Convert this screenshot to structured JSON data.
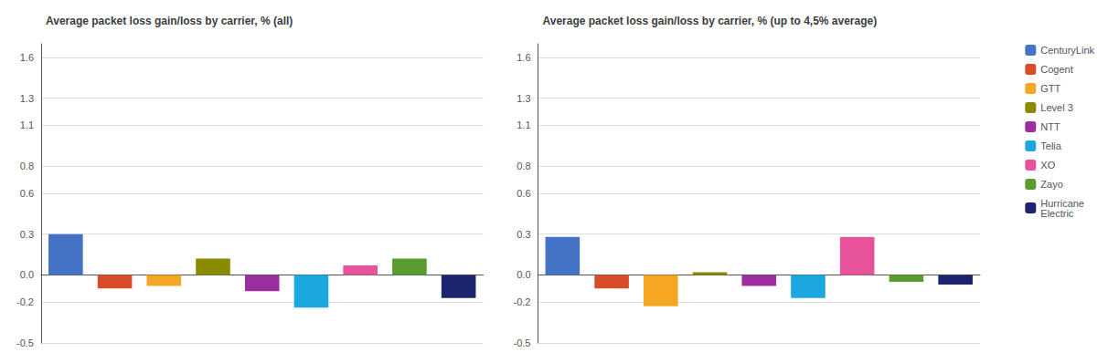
{
  "chart_data": [
    {
      "type": "bar",
      "title": "Average packet loss gain/loss by carrier, % (all)",
      "categories": [
        "CenturyLink",
        "Cogent",
        "GTT",
        "Level 3",
        "NTT",
        "Telia",
        "XO",
        "Zayo",
        "Hurricane\nElectric"
      ],
      "values": [
        0.3,
        -0.1,
        -0.08,
        0.12,
        -0.12,
        -0.24,
        0.07,
        0.12,
        -0.17
      ],
      "colors": [
        "#4472C4",
        "#D94C2A",
        "#F5A623",
        "#8B8B00",
        "#9B2FA0",
        "#1BA8E0",
        "#E8529A",
        "#5B9C2E",
        "#1C2470"
      ],
      "ylim": [
        -0.5,
        1.7
      ],
      "yticks": [
        -0.5,
        -0.2,
        {
          "value": 0,
          "label": "0.0"
        },
        0.3,
        0.6,
        0.8,
        1.1,
        1.3,
        1.6
      ],
      "grid": true,
      "tick_labels": "y"
    },
    {
      "type": "bar",
      "title": "Average packet loss gain/loss by carrier, % (up to 4,5% average)",
      "categories": [
        "CenturyLink",
        "Cogent",
        "GTT",
        "Level 3",
        "NTT",
        "Telia",
        "XO",
        "Zayo",
        "Hurricane\nElectric"
      ],
      "values": [
        0.28,
        -0.1,
        -0.23,
        0.02,
        -0.08,
        -0.17,
        0.28,
        -0.05,
        -0.07
      ],
      "colors": [
        "#4472C4",
        "#D94C2A",
        "#F5A623",
        "#8B8B00",
        "#9B2FA0",
        "#1BA8E0",
        "#E8529A",
        "#5B9C2E",
        "#1C2470"
      ],
      "ylim": [
        -0.5,
        1.7
      ],
      "yticks": [
        -0.5,
        -0.2,
        {
          "value": 0,
          "label": "0.0"
        },
        0.3,
        0.6,
        0.8,
        1.1,
        1.3,
        1.6
      ],
      "grid": true,
      "tick_labels": "y",
      "legend": "right"
    }
  ]
}
